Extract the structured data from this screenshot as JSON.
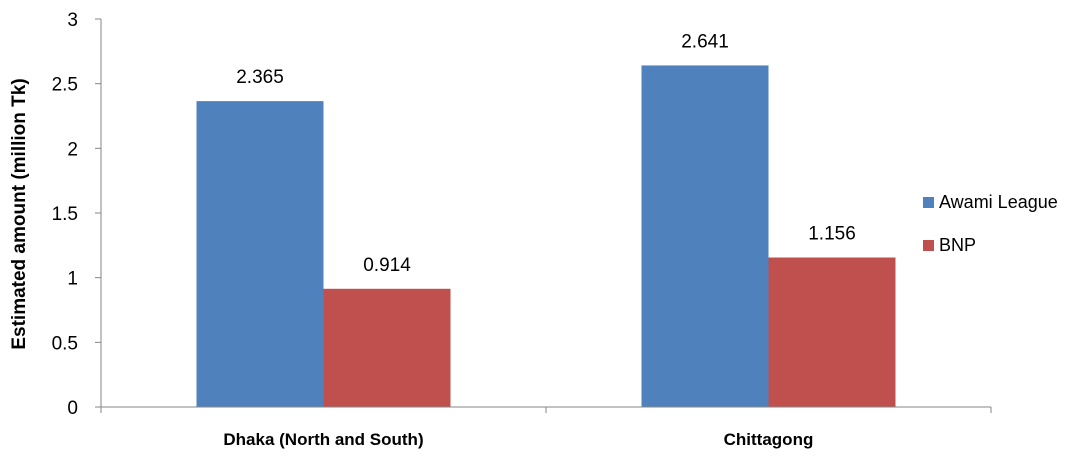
{
  "chart_data": {
    "type": "bar",
    "title": "",
    "xlabel": "",
    "ylabel": "Estimated amount (million Tk)",
    "categories": [
      "Dhaka (North and South)",
      "Chittagong"
    ],
    "series": [
      {
        "name": "Awami League",
        "color": "#4F81BD",
        "values": [
          2.365,
          2.641
        ],
        "labels": [
          "2.365",
          "2.641"
        ]
      },
      {
        "name": "BNP",
        "color": "#C0504D",
        "values": [
          0.914,
          1.156
        ],
        "labels": [
          "0.914",
          "1.156"
        ]
      }
    ],
    "ylim": [
      0,
      3
    ],
    "yticks": [
      0,
      0.5,
      1,
      1.5,
      2,
      2.5,
      3
    ],
    "ytick_labels": [
      "0",
      "0.5",
      "1",
      "1.5",
      "2",
      "2.5",
      "3"
    ],
    "grid": false,
    "legend_position": "right"
  }
}
